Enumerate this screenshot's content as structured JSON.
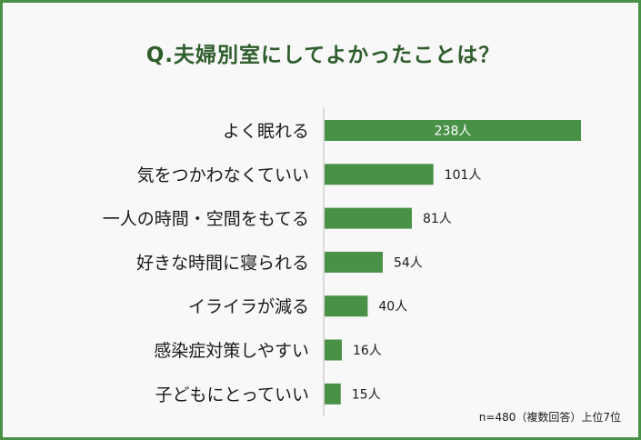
{
  "title": "Q.夫婦別室にしてよかったことは？",
  "note": "n=480（複数回答）上位7位",
  "colors": {
    "bar": "#4a9148",
    "frame": "#4a9148",
    "title": "#2f5d2c"
  },
  "chart_data": {
    "type": "bar",
    "orientation": "horizontal",
    "title": "Q.夫婦別室にしてよかったことは？",
    "categories": [
      "よく眠れる",
      "気をつかわなくていい",
      "一人の時間・空間をもてる",
      "好きな時間に寝られる",
      "イライラが減る",
      "感染症対策しやすい",
      "子どもにとっていい"
    ],
    "values": [
      238,
      101,
      81,
      54,
      40,
      16,
      15
    ],
    "value_labels": [
      "238人",
      "101人",
      "81人",
      "54人",
      "40人",
      "16人",
      "15人"
    ],
    "xlim": [
      0,
      238
    ],
    "grid": false,
    "legend": "none"
  }
}
